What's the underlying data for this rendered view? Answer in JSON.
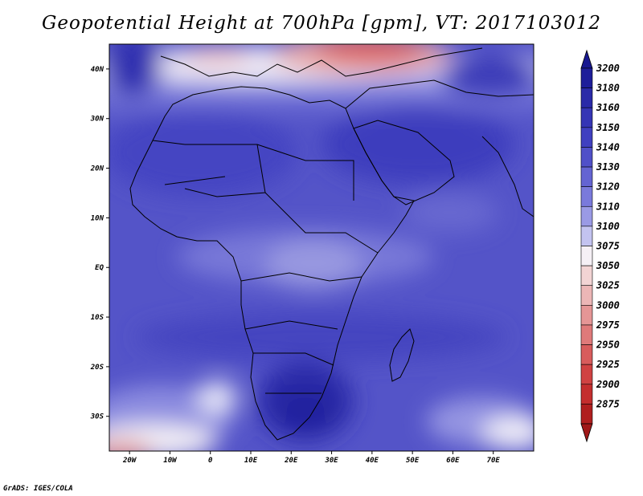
{
  "title": "Geopotential Height at 700hPa [gpm], VT: 2017103012",
  "credit": "GrADS: IGES/COLA",
  "map": {
    "region": "Africa and surroundings",
    "lon_range": [
      -25,
      80
    ],
    "lat_range": [
      -37,
      45
    ],
    "lat_ticks": [
      {
        "value": 40,
        "label": "40N"
      },
      {
        "value": 30,
        "label": "30N"
      },
      {
        "value": 20,
        "label": "20N"
      },
      {
        "value": 10,
        "label": "10N"
      },
      {
        "value": 0,
        "label": "EQ"
      },
      {
        "value": -10,
        "label": "10S"
      },
      {
        "value": -20,
        "label": "20S"
      },
      {
        "value": -30,
        "label": "30S"
      }
    ],
    "lon_ticks": [
      {
        "value": -20,
        "label": "20W"
      },
      {
        "value": -10,
        "label": "10W"
      },
      {
        "value": 0,
        "label": "0"
      },
      {
        "value": 10,
        "label": "10E"
      },
      {
        "value": 20,
        "label": "20E"
      },
      {
        "value": 30,
        "label": "30E"
      },
      {
        "value": 40,
        "label": "40E"
      },
      {
        "value": 50,
        "label": "50E"
      },
      {
        "value": 60,
        "label": "60E"
      },
      {
        "value": 70,
        "label": "70E"
      }
    ]
  },
  "colorbar": {
    "levels": [
      {
        "label": "3200",
        "color": "#1e1e9a"
      },
      {
        "label": "3180",
        "color": "#2a2aa8"
      },
      {
        "label": "3160",
        "color": "#3535b5"
      },
      {
        "label": "3150",
        "color": "#4040c0"
      },
      {
        "label": "3140",
        "color": "#5050c8"
      },
      {
        "label": "3130",
        "color": "#6464d2"
      },
      {
        "label": "3120",
        "color": "#7a7adb"
      },
      {
        "label": "3110",
        "color": "#9a9ae5"
      },
      {
        "label": "3100",
        "color": "#c3c3f0"
      },
      {
        "label": "3075",
        "color": "#f5f0f5"
      },
      {
        "label": "3050",
        "color": "#f2d4d4"
      },
      {
        "label": "3025",
        "color": "#ecb6b6"
      },
      {
        "label": "3000",
        "color": "#e59696"
      },
      {
        "label": "2975",
        "color": "#df7a7a"
      },
      {
        "label": "2950",
        "color": "#d85c5c"
      },
      {
        "label": "2925",
        "color": "#d04242"
      },
      {
        "label": "2900",
        "color": "#c42e2e"
      },
      {
        "label": "2875",
        "color": "#b01f1f"
      }
    ],
    "top_color": "#181890",
    "bottom_color": "#a01818"
  }
}
